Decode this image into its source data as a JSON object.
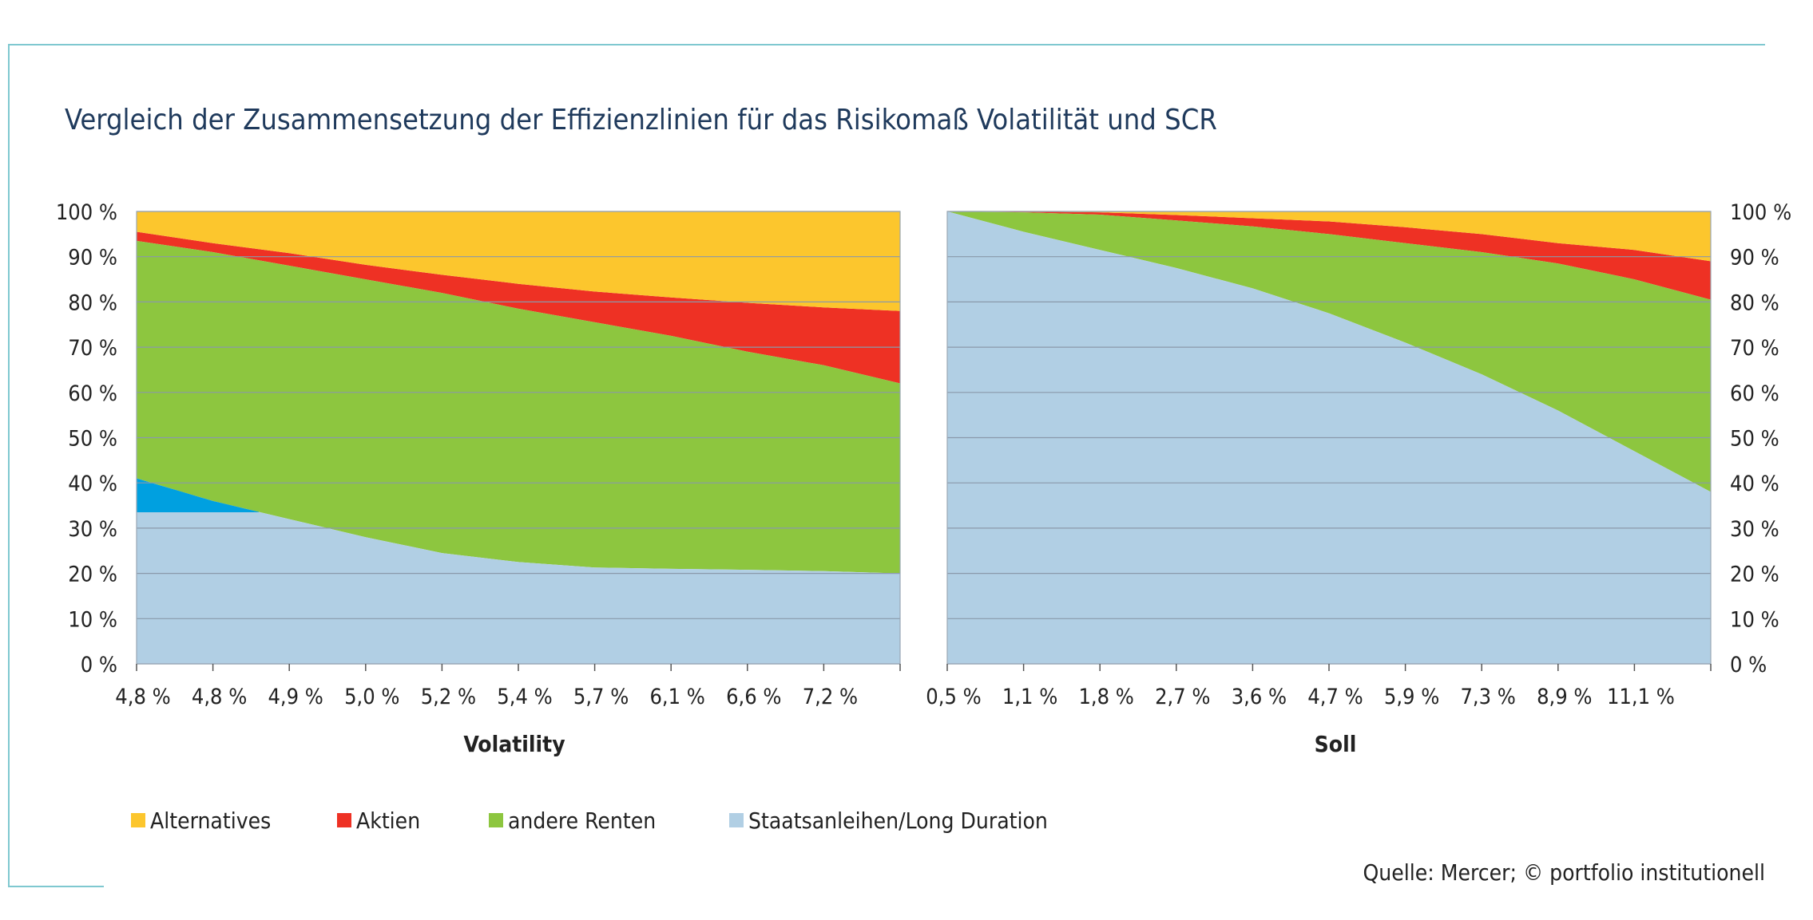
{
  "title": "Vergleich der Zusammensetzung der Effizienzlinien für das Risikomaß Volatilität und SCR",
  "source": "Quelle: Mercer; © portfolio institutionell",
  "colors": {
    "alternatives": "#fcc62d",
    "aktien": "#ee3124",
    "andere_renten": "#8dc63f",
    "staatsanleihen": "#b1cfe4",
    "extra_blue": "#00a0e0",
    "gridline": "#8a99aa",
    "frame": "#7fc8d0",
    "title": "#1f3a5c"
  },
  "legend": [
    {
      "key": "alternatives",
      "label": "Alternatives",
      "color": "#fcc62d"
    },
    {
      "key": "aktien",
      "label": "Aktien",
      "color": "#ee3124"
    },
    {
      "key": "andere_renten",
      "label": "andere Renten",
      "color": "#8dc63f"
    },
    {
      "key": "staatsanleihen",
      "label": "Staatsanleihen/Long Duration",
      "color": "#b1cfe4"
    }
  ],
  "chart_data": [
    {
      "type": "area",
      "stacked": true,
      "xlabel": "Volatility",
      "ylim": [
        0,
        100
      ],
      "y_ticks": [
        "0 %",
        "10 %",
        "20 %",
        "30 %",
        "40 %",
        "50 %",
        "60 %",
        "70 %",
        "80 %",
        "90 %",
        "100 %"
      ],
      "y_axis_side": "left",
      "categories": [
        "4,8 %",
        "4,8 %",
        "4,9 %",
        "5,0 %",
        "5,2 %",
        "5,4 %",
        "5,7 %",
        "6,1 %",
        "6,6 %",
        "7,2 %",
        ""
      ],
      "boundaries": {
        "staatsanleihen_top": [
          41,
          36,
          32,
          28,
          24.5,
          22.5,
          21.3,
          21,
          20.8,
          20.5,
          20
        ],
        "andere_renten_top": [
          93.5,
          91,
          88,
          85,
          82,
          78.5,
          75.5,
          72.5,
          69,
          66,
          62
        ],
        "aktien_top": [
          95.5,
          93,
          90.8,
          88.2,
          86,
          84,
          82.3,
          81,
          79.8,
          78.8,
          78
        ],
        "alternatives_top": [
          100,
          100,
          100,
          100,
          100,
          100,
          100,
          100,
          100,
          100,
          100
        ]
      },
      "extra_blue_wedge": {
        "x_from": 0,
        "x_to": 1.6,
        "level": 33.5
      }
    },
    {
      "type": "area",
      "stacked": true,
      "xlabel": "Soll",
      "ylim": [
        0,
        100
      ],
      "y_ticks": [
        "0 %",
        "10 %",
        "20 %",
        "30 %",
        "40 %",
        "50 %",
        "60 %",
        "70 %",
        "80 %",
        "90 %",
        "100 %"
      ],
      "y_axis_side": "right",
      "categories": [
        "0,5 %",
        "1,1 %",
        "1,8 %",
        "2,7 %",
        "3,6 %",
        "4,7 %",
        "5,9 %",
        "7,3 %",
        "8,9 %",
        "11,1 %",
        ""
      ],
      "boundaries": {
        "staatsanleihen_top": [
          100,
          95.5,
          91.5,
          87.5,
          83,
          77.5,
          71,
          64,
          56,
          47,
          38
        ],
        "andere_renten_top": [
          100,
          99.8,
          99.3,
          98,
          96.7,
          95,
          93,
          91,
          88.5,
          85,
          80.5
        ],
        "aktien_top": [
          100,
          100,
          99.8,
          99.2,
          98.5,
          97.8,
          96.5,
          95,
          93,
          91.5,
          89
        ],
        "alternatives_top": [
          100,
          100,
          100,
          100,
          100,
          100,
          100,
          100,
          100,
          100,
          100
        ]
      }
    }
  ]
}
